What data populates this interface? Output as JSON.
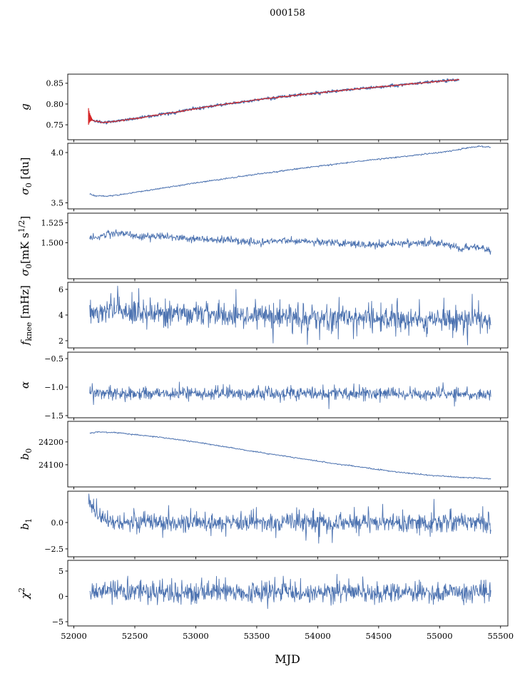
{
  "title": "000158",
  "chart_data": {
    "type": "line",
    "title": "000158",
    "xlabel": "MJD",
    "xlim": [
      51950,
      55560
    ],
    "xticks": [
      {
        "v": 52000,
        "l": "52000"
      },
      {
        "v": 52500,
        "l": "52500"
      },
      {
        "v": 53000,
        "l": "53000"
      },
      {
        "v": 53500,
        "l": "53500"
      },
      {
        "v": 54000,
        "l": "54000"
      },
      {
        "v": 54500,
        "l": "54500"
      },
      {
        "v": 55000,
        "l": "55000"
      },
      {
        "v": 55500,
        "l": "55500"
      }
    ],
    "grid": false,
    "legend": "none",
    "colors": {
      "line": "#4c72b0",
      "accent": "#d62728",
      "axis": "#000000",
      "background": "#ffffff"
    },
    "panels": [
      {
        "name": "g",
        "label": [
          {
            "t": "g",
            "i": true
          }
        ],
        "ylim": [
          0.714,
          0.872
        ],
        "yticks": [
          {
            "v": 0.75,
            "l": "0.75"
          },
          {
            "v": 0.8,
            "l": "0.80"
          },
          {
            "v": 0.85,
            "l": "0.85"
          }
        ],
        "series": [
          {
            "color": "#4c72b0",
            "width": 1.7,
            "noise": 0.0016,
            "n": 600,
            "anchors": [
              [
                52120,
                0.77
              ],
              [
                52160,
                0.76
              ],
              [
                52230,
                0.7555
              ],
              [
                52320,
                0.7575
              ],
              [
                52450,
                0.7625
              ],
              [
                52600,
                0.7695
              ],
              [
                52800,
                0.779
              ],
              [
                53000,
                0.789
              ],
              [
                53200,
                0.798
              ],
              [
                53400,
                0.806
              ],
              [
                53600,
                0.8135
              ],
              [
                53800,
                0.8205
              ],
              [
                54000,
                0.827
              ],
              [
                54200,
                0.833
              ],
              [
                54400,
                0.8385
              ],
              [
                54600,
                0.8438
              ],
              [
                54800,
                0.8495
              ],
              [
                55000,
                0.855
              ],
              [
                55160,
                0.859
              ]
            ]
          },
          {
            "color": "#d62728",
            "width": 1.1,
            "noise": 0.0008,
            "n": 600,
            "anchors": [
              [
                52120,
                0.77
              ],
              [
                52160,
                0.76
              ],
              [
                52230,
                0.7555
              ],
              [
                52320,
                0.7575
              ],
              [
                52450,
                0.7625
              ],
              [
                52600,
                0.7695
              ],
              [
                52800,
                0.779
              ],
              [
                53000,
                0.789
              ],
              [
                53200,
                0.798
              ],
              [
                53400,
                0.806
              ],
              [
                53600,
                0.8135
              ],
              [
                53800,
                0.8205
              ],
              [
                54000,
                0.827
              ],
              [
                54200,
                0.833
              ],
              [
                54400,
                0.8385
              ],
              [
                54600,
                0.8438
              ],
              [
                54800,
                0.8495
              ],
              [
                55000,
                0.855
              ],
              [
                55160,
                0.859
              ]
            ],
            "errorbars": {
              "halves": [
                0.02,
                0.015,
                0.011,
                0.008,
                0.006,
                0.004
              ]
            }
          }
        ]
      },
      {
        "name": "sigma0-du",
        "label": [
          {
            "t": "σ",
            "i": true
          },
          {
            "t": "0",
            "sub": true
          },
          {
            "t": " [du]"
          }
        ],
        "ylim": [
          3.44,
          4.092
        ],
        "yticks": [
          {
            "v": 3.5,
            "l": "3.5"
          },
          {
            "v": 4.0,
            "l": "4.0"
          }
        ],
        "series": [
          {
            "color": "#4c72b0",
            "width": 1.0,
            "noise": 0.0035,
            "n": 700,
            "anchors": [
              [
                52130,
                3.588
              ],
              [
                52180,
                3.57
              ],
              [
                52260,
                3.565
              ],
              [
                52400,
                3.583
              ],
              [
                52600,
                3.623
              ],
              [
                52800,
                3.66
              ],
              [
                53000,
                3.698
              ],
              [
                53200,
                3.733
              ],
              [
                53400,
                3.768
              ],
              [
                53600,
                3.8
              ],
              [
                53800,
                3.833
              ],
              [
                54000,
                3.864
              ],
              [
                54200,
                3.894
              ],
              [
                54400,
                3.922
              ],
              [
                54600,
                3.948
              ],
              [
                54800,
                3.974
              ],
              [
                55000,
                4.0
              ],
              [
                55120,
                4.022
              ],
              [
                55250,
                4.052
              ],
              [
                55330,
                4.062
              ],
              [
                55420,
                4.052
              ]
            ]
          }
        ]
      },
      {
        "name": "sigma0-mk",
        "label": [
          {
            "t": "σ",
            "i": true
          },
          {
            "t": "0",
            "sub": true
          },
          {
            "t": "[mK s"
          },
          {
            "t": "1/2",
            "sup": true
          },
          {
            "t": "]"
          }
        ],
        "ylim": [
          1.455,
          1.537
        ],
        "yticks": [
          {
            "v": 1.5,
            "l": "1.500"
          },
          {
            "v": 1.525,
            "l": "1.525"
          }
        ],
        "series": [
          {
            "color": "#4c72b0",
            "width": 0.9,
            "noise": 0.0022,
            "n": 900,
            "spike": {
              "p": 0.02,
              "a": 0.004
            },
            "anchors": [
              [
                52130,
                1.506
              ],
              [
                52220,
                1.509
              ],
              [
                52330,
                1.5118
              ],
              [
                52430,
                1.5102
              ],
              [
                52550,
                1.5078
              ],
              [
                52700,
                1.5082
              ],
              [
                52850,
                1.5068
              ],
              [
                53000,
                1.5048
              ],
              [
                53150,
                1.5035
              ],
              [
                53300,
                1.5028
              ],
              [
                53450,
                1.5005
              ],
              [
                53600,
                1.5018
              ],
              [
                53750,
                1.5028
              ],
              [
                53900,
                1.5018
              ],
              [
                54050,
                1.5012
              ],
              [
                54200,
                1.5002
              ],
              [
                54350,
                1.4972
              ],
              [
                54500,
                1.4978
              ],
              [
                54650,
                1.4982
              ],
              [
                54800,
                1.4988
              ],
              [
                54950,
                1.4995
              ],
              [
                55080,
                1.4978
              ],
              [
                55180,
                1.4925
              ],
              [
                55280,
                1.4958
              ],
              [
                55420,
                1.4895
              ]
            ]
          }
        ]
      },
      {
        "name": "fknee",
        "label": [
          {
            "t": "f",
            "i": true
          },
          {
            "t": "knee",
            "sub": true
          },
          {
            "t": " [mHz]"
          }
        ],
        "ylim": [
          1.44,
          6.55
        ],
        "yticks": [
          {
            "v": 2,
            "l": "2"
          },
          {
            "v": 4,
            "l": "4"
          },
          {
            "v": 6,
            "l": "6"
          }
        ],
        "series": [
          {
            "color": "#4c72b0",
            "width": 0.9,
            "noise": 0.45,
            "n": 950,
            "spike": {
              "p": 0.05,
              "a": 1.0
            },
            "anchors": [
              [
                52130,
                4.4
              ],
              [
                52400,
                4.3
              ],
              [
                52700,
                4.2
              ],
              [
                53000,
                4.05
              ],
              [
                53300,
                3.95
              ],
              [
                53600,
                3.9
              ],
              [
                53900,
                3.85
              ],
              [
                54200,
                3.8
              ],
              [
                54500,
                3.72
              ],
              [
                54800,
                3.65
              ],
              [
                55100,
                3.58
              ],
              [
                55420,
                3.5
              ]
            ]
          }
        ]
      },
      {
        "name": "alpha",
        "label": [
          {
            "t": "α",
            "i": true
          }
        ],
        "ylim": [
          -1.538,
          -0.387
        ],
        "yticks": [
          {
            "v": -0.5,
            "l": "−0.5"
          },
          {
            "v": -1.0,
            "l": "−1.0"
          },
          {
            "v": -1.5,
            "l": "−1.5"
          }
        ],
        "series": [
          {
            "color": "#4c72b0",
            "width": 0.9,
            "noise": 0.052,
            "n": 950,
            "spike": {
              "p": 0.02,
              "a": 0.12
            },
            "anchors": [
              [
                52130,
                -1.115
              ],
              [
                55420,
                -1.115
              ]
            ]
          }
        ]
      },
      {
        "name": "b0",
        "label": [
          {
            "t": "b",
            "i": true
          },
          {
            "t": "0",
            "sub": true
          }
        ],
        "ylim": [
          24003,
          24290
        ],
        "yticks": [
          {
            "v": 24100,
            "l": "24100"
          },
          {
            "v": 24200,
            "l": "24200"
          }
        ],
        "series": [
          {
            "color": "#4c72b0",
            "width": 1.0,
            "noise": 1.3,
            "n": 700,
            "anchors": [
              [
                52130,
                24238
              ],
              [
                52200,
                24244
              ],
              [
                52330,
                24241
              ],
              [
                52500,
                24232
              ],
              [
                52700,
                24221
              ],
              [
                52900,
                24207
              ],
              [
                53100,
                24191
              ],
              [
                53300,
                24173
              ],
              [
                53500,
                24156
              ],
              [
                53700,
                24140
              ],
              [
                53900,
                24124
              ],
              [
                54100,
                24108
              ],
              [
                54300,
                24094
              ],
              [
                54500,
                24079
              ],
              [
                54700,
                24066
              ],
              [
                54900,
                24055
              ],
              [
                55050,
                24049
              ],
              [
                55200,
                24044
              ],
              [
                55320,
                24042
              ],
              [
                55420,
                24038
              ]
            ]
          }
        ]
      },
      {
        "name": "b1",
        "label": [
          {
            "t": "b",
            "i": true
          },
          {
            "t": "1",
            "sub": true
          }
        ],
        "ylim": [
          -3.25,
          2.97
        ],
        "yticks": [
          {
            "v": 0.0,
            "l": "0.0"
          },
          {
            "v": -2.5,
            "l": "−2.5"
          }
        ],
        "series": [
          {
            "color": "#4c72b0",
            "width": 0.9,
            "noise": 0.45,
            "n": 950,
            "spike": {
              "p": 0.03,
              "a": 1.2
            },
            "anchors": [
              [
                52120,
                2.4
              ],
              [
                52150,
                1.4
              ],
              [
                52200,
                0.6
              ],
              [
                52300,
                0.15
              ],
              [
                52500,
                0.0
              ],
              [
                55420,
                0.0
              ]
            ]
          }
        ]
      },
      {
        "name": "chi2",
        "label": [
          {
            "t": "χ",
            "i": true
          },
          {
            "t": "2",
            "sup": true
          }
        ],
        "ylim": [
          -5.84,
          7.11
        ],
        "yticks": [
          {
            "v": -5,
            "l": "−5"
          },
          {
            "v": 0,
            "l": "0"
          },
          {
            "v": 5,
            "l": "5"
          }
        ],
        "series": [
          {
            "color": "#4c72b0",
            "width": 0.9,
            "noise": 1.05,
            "n": 950,
            "spike": {
              "p": 0.018,
              "a": 2.0
            },
            "anchors": [
              [
                52130,
                0.85
              ],
              [
                55420,
                0.85
              ]
            ]
          }
        ]
      }
    ]
  }
}
